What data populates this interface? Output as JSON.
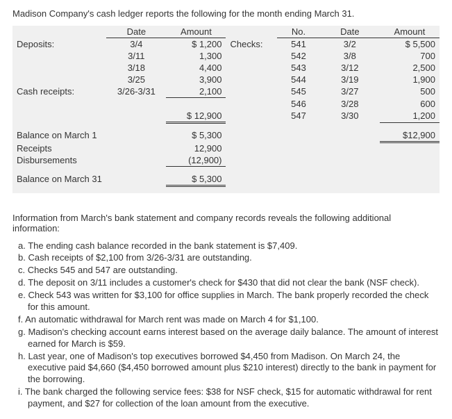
{
  "intro": "Madison Company's cash ledger reports the following for the month ending March 31.",
  "headers": {
    "date": "Date",
    "amount": "Amount",
    "no": "No.",
    "date2": "Date",
    "amount2": "Amount"
  },
  "labels": {
    "deposits": "Deposits:",
    "cash_receipts": "Cash receipts:",
    "checks": "Checks:",
    "balance_march1": "Balance on March 1",
    "receipts": "Receipts",
    "disbursements": "Disbursements",
    "balance_march31": "Balance on March 31"
  },
  "deposits": [
    {
      "date": "3/4",
      "amount": "$ 1,200"
    },
    {
      "date": "3/11",
      "amount": "1,300"
    },
    {
      "date": "3/18",
      "amount": "4,400"
    },
    {
      "date": "3/25",
      "amount": "3,900"
    },
    {
      "date": "3/26-3/31",
      "amount": "2,100"
    }
  ],
  "deposits_total": "$ 12,900",
  "checks": [
    {
      "no": "541",
      "date": "3/2",
      "amount": "$ 5,500"
    },
    {
      "no": "542",
      "date": "3/8",
      "amount": "700"
    },
    {
      "no": "543",
      "date": "3/12",
      "amount": "2,500"
    },
    {
      "no": "544",
      "date": "3/19",
      "amount": "1,900"
    },
    {
      "no": "545",
      "date": "3/27",
      "amount": "500"
    },
    {
      "no": "546",
      "date": "3/28",
      "amount": "600"
    },
    {
      "no": "547",
      "date": "3/30",
      "amount": "1,200"
    }
  ],
  "summary": {
    "balance_march1": "$  5,300",
    "receipts": "12,900",
    "disbursements": "(12,900)",
    "balance_march31": "$  5,300",
    "checks_total": "$12,900"
  },
  "info_intro": "Information from March's bank statement and company records reveals the following additional information:",
  "info_items": {
    "a": "a. The ending cash balance recorded in the bank statement is $7,409.",
    "b": "b. Cash receipts of $2,100 from 3/26-3/31 are outstanding.",
    "c": "c. Checks 545 and 547 are outstanding.",
    "d": "d. The deposit on 3/11 includes a customer's check for $430 that did not clear the bank (NSF check).",
    "e": "e. Check 543 was written for $3,100 for office supplies in March. The bank properly recorded the check for this amount.",
    "f": "f.  An automatic withdrawal for March rent was made on March 4 for $1,100.",
    "g": "g. Madison's checking account earns interest based on the average daily balance. The amount of interest earned for March is $59.",
    "h": "h. Last year, one of Madison's top executives borrowed $4,450 from Madison. On March 24, the executive paid $4,660 ($4,450 borrowed amount plus $210 interest) directly to the bank in payment for the borrowing.",
    "i": "i.  The bank charged the following service fees: $38 for NSF check, $15 for automatic withdrawal for rent payment, and $27 for collection of the loan amount from the executive."
  }
}
